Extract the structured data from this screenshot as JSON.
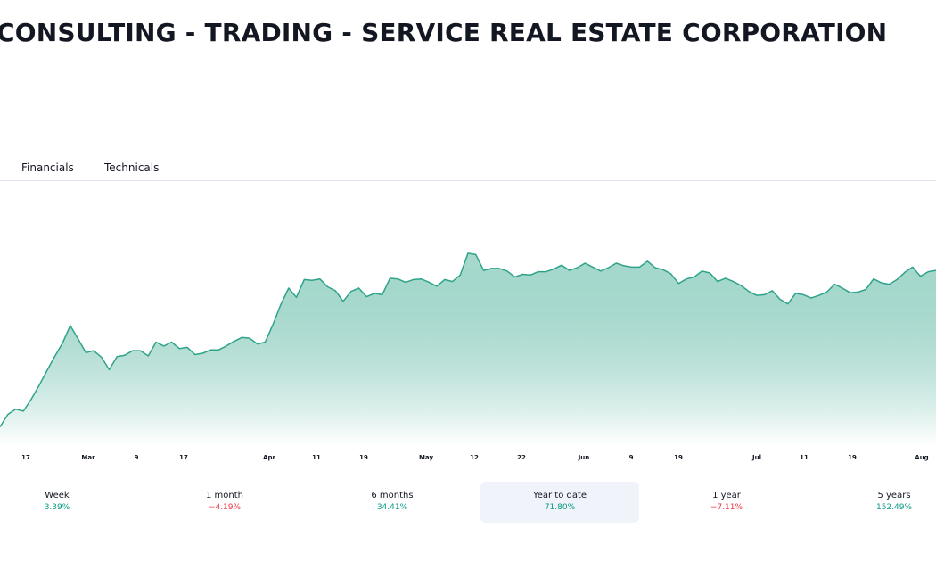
{
  "header": {
    "title": "CONSULTING - TRADING - SERVICE REAL ESTATE CORPORATION"
  },
  "tabs": [
    {
      "label": "Financials"
    },
    {
      "label": "Technicals"
    }
  ],
  "chart_data": {
    "type": "area",
    "line_color": "#2ea389",
    "fill_color_top": "#2ea389",
    "fill_color_bottom": "#ffffff",
    "x_ticks": [
      "17",
      "Mar",
      "9",
      "17",
      "Apr",
      "11",
      "19",
      "May",
      "12",
      "22",
      "Jun",
      "9",
      "19",
      "Jul",
      "11",
      "19",
      "Aug"
    ],
    "series": [
      {
        "values": [
          2.9,
          4.8,
          5.6,
          5.3,
          7.1,
          9.2,
          11.4,
          13.6,
          15.6,
          18.3,
          16.3,
          14.2,
          14.5,
          13.5,
          11.6,
          13.6,
          13.8,
          14.5,
          14.5,
          13.7,
          15.8,
          15.2,
          15.8,
          14.8,
          15.0,
          13.9,
          14.1,
          14.6,
          14.6,
          15.2,
          15.9,
          16.5,
          16.4,
          15.5,
          15.8,
          18.5,
          21.5,
          24.0,
          22.6,
          25.3,
          25.2,
          25.4,
          24.2,
          23.6,
          22.0,
          23.5,
          24.0,
          22.7,
          23.2,
          23.0,
          25.5,
          25.4,
          24.9,
          25.3,
          25.4,
          24.9,
          24.3,
          25.3,
          25.0,
          26.0,
          29.3,
          29.1,
          26.7,
          27.0,
          27.0,
          26.6,
          25.7,
          26.1,
          26.0,
          26.5,
          26.5,
          26.9,
          27.5,
          26.7,
          27.1,
          27.8,
          27.2,
          26.6,
          27.1,
          27.8,
          27.4,
          27.2,
          27.2,
          28.1,
          27.1,
          26.8,
          26.2,
          24.7,
          25.4,
          25.7,
          26.6,
          26.3,
          25.0,
          25.5,
          25.0,
          24.4,
          23.5,
          22.9,
          23.0,
          23.6,
          22.3,
          21.6,
          23.2,
          23.0,
          22.5,
          22.9,
          23.4,
          24.6,
          24.0,
          23.3,
          23.4,
          23.8,
          25.4,
          24.8,
          24.6,
          25.3,
          26.4,
          27.2,
          25.8,
          26.5,
          26.7
        ]
      }
    ],
    "ylim": [
      0,
      40
    ],
    "grid": false,
    "legend": "none"
  },
  "periods": [
    {
      "label": "Week",
      "value": "3.39%",
      "trend": "pos",
      "active": false
    },
    {
      "label": "1 month",
      "value": "−4.19%",
      "trend": "neg",
      "active": false
    },
    {
      "label": "6 months",
      "value": "34.41%",
      "trend": "pos",
      "active": false
    },
    {
      "label": "Year to date",
      "value": "71.80%",
      "trend": "pos",
      "active": true
    },
    {
      "label": "1 year",
      "value": "−7.11%",
      "trend": "neg",
      "active": false
    },
    {
      "label": "5 years",
      "value": "152.49%",
      "trend": "pos",
      "active": false
    }
  ]
}
